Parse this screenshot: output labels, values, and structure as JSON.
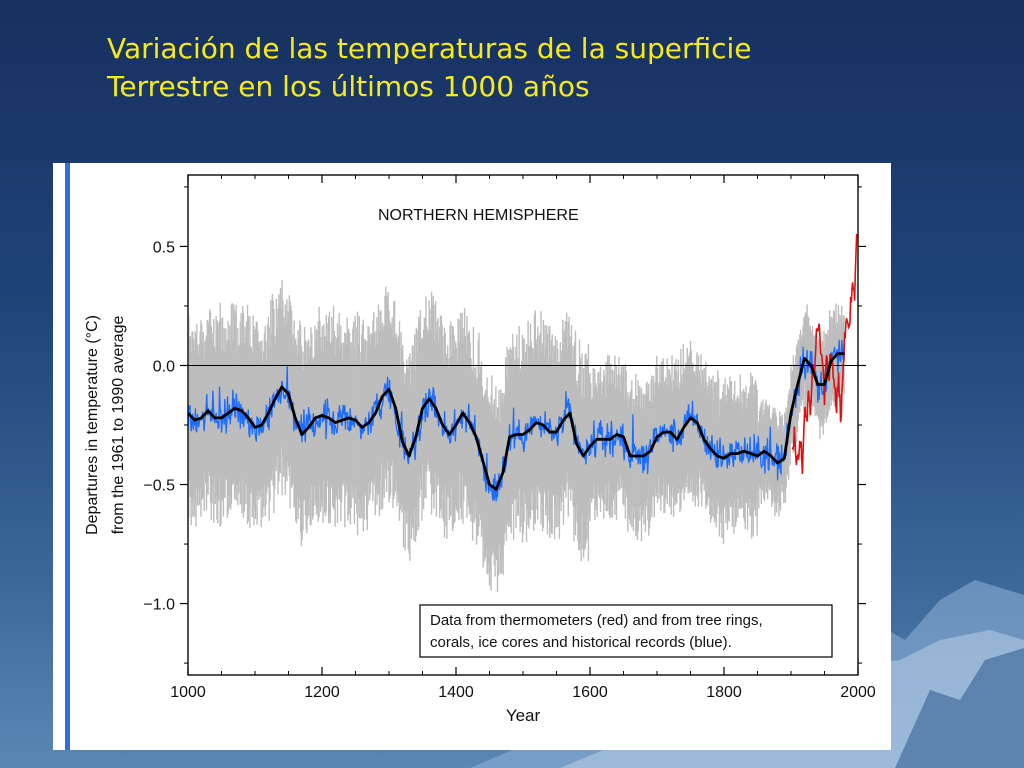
{
  "slide": {
    "title_line1": "Variación de las temperaturas de la superficie",
    "title_line2": "Terrestre en los últimos 1000 años",
    "title_color": "#f5ea1c",
    "background_colors": [
      "#17305f",
      "#5b87b5"
    ]
  },
  "chart_data": {
    "type": "line",
    "title": "NORTHERN HEMISPHERE",
    "xlabel": "Year",
    "ylabel_line1": "Departures in temperature (°C)",
    "ylabel_line2": "from the 1961 to 1990 average",
    "xlim": [
      1000,
      2000
    ],
    "ylim": [
      -1.3,
      0.8
    ],
    "x_ticks": [
      1000,
      1200,
      1400,
      1600,
      1800,
      2000
    ],
    "x_tick_labels": [
      "1000",
      "1200",
      "1400",
      "1600",
      "1800",
      "2000"
    ],
    "y_ticks": [
      0.5,
      0.0,
      -0.5,
      -1.0
    ],
    "y_tick_labels": [
      "0.5",
      "0.0",
      "−0.5",
      "−1.0"
    ],
    "reference_line": 0.0,
    "grid": false,
    "annotation_line1": "Data from thermometers (red) and from tree rings,",
    "annotation_line2": "corals, ice cores and historical records (blue).",
    "colors": {
      "uncertainty": "#bdbdbd",
      "proxy": "#1a6dff",
      "thermometer": "#e01010",
      "smoothed": "#000000"
    },
    "series": [
      {
        "name": "proxy_smoothed",
        "x": [
          1000,
          1010,
          1020,
          1030,
          1040,
          1050,
          1060,
          1070,
          1080,
          1090,
          1100,
          1110,
          1120,
          1130,
          1140,
          1150,
          1160,
          1170,
          1180,
          1190,
          1200,
          1210,
          1220,
          1230,
          1240,
          1250,
          1260,
          1270,
          1280,
          1290,
          1300,
          1310,
          1320,
          1330,
          1340,
          1350,
          1360,
          1370,
          1380,
          1390,
          1400,
          1410,
          1420,
          1430,
          1440,
          1450,
          1460,
          1470,
          1480,
          1490,
          1500,
          1510,
          1520,
          1530,
          1540,
          1550,
          1560,
          1570,
          1580,
          1590,
          1600,
          1610,
          1620,
          1630,
          1640,
          1650,
          1660,
          1670,
          1680,
          1690,
          1700,
          1710,
          1720,
          1730,
          1740,
          1750,
          1760,
          1770,
          1780,
          1790,
          1800,
          1810,
          1820,
          1830,
          1840,
          1850,
          1860,
          1870,
          1880,
          1890,
          1900,
          1910,
          1920,
          1930,
          1940,
          1950,
          1960,
          1970,
          1980
        ],
        "y": [
          -0.2,
          -0.23,
          -0.22,
          -0.19,
          -0.22,
          -0.22,
          -0.2,
          -0.18,
          -0.19,
          -0.22,
          -0.26,
          -0.25,
          -0.2,
          -0.14,
          -0.09,
          -0.12,
          -0.22,
          -0.29,
          -0.26,
          -0.22,
          -0.21,
          -0.22,
          -0.24,
          -0.23,
          -0.22,
          -0.23,
          -0.26,
          -0.24,
          -0.2,
          -0.13,
          -0.1,
          -0.18,
          -0.32,
          -0.38,
          -0.3,
          -0.18,
          -0.14,
          -0.18,
          -0.25,
          -0.29,
          -0.25,
          -0.2,
          -0.24,
          -0.3,
          -0.4,
          -0.5,
          -0.52,
          -0.45,
          -0.3,
          -0.29,
          -0.29,
          -0.27,
          -0.24,
          -0.25,
          -0.28,
          -0.28,
          -0.23,
          -0.2,
          -0.33,
          -0.38,
          -0.34,
          -0.31,
          -0.31,
          -0.31,
          -0.29,
          -0.3,
          -0.38,
          -0.38,
          -0.38,
          -0.36,
          -0.3,
          -0.28,
          -0.28,
          -0.31,
          -0.26,
          -0.22,
          -0.24,
          -0.31,
          -0.35,
          -0.38,
          -0.39,
          -0.37,
          -0.37,
          -0.36,
          -0.37,
          -0.38,
          -0.36,
          -0.38,
          -0.41,
          -0.39,
          -0.2,
          -0.08,
          0.03,
          0.0,
          -0.08,
          -0.08,
          0.02,
          0.05,
          0.05
        ]
      },
      {
        "name": "thermometer_anomaly",
        "x": [
          1902,
          1905,
          1908,
          1911,
          1914,
          1917,
          1920,
          1923,
          1926,
          1929,
          1932,
          1935,
          1938,
          1941,
          1944,
          1947,
          1950,
          1953,
          1956,
          1959,
          1962,
          1965,
          1968,
          1971,
          1974,
          1977,
          1980,
          1983,
          1986,
          1989,
          1992,
          1995,
          1998
        ],
        "y": [
          -0.37,
          -0.3,
          -0.42,
          -0.4,
          -0.3,
          -0.45,
          -0.2,
          -0.25,
          -0.1,
          -0.2,
          0.0,
          -0.05,
          0.15,
          0.2,
          0.1,
          0.0,
          -0.1,
          0.05,
          -0.05,
          0.05,
          0.0,
          -0.1,
          -0.15,
          -0.05,
          -0.2,
          -0.1,
          0.1,
          0.2,
          0.15,
          0.25,
          0.35,
          0.3,
          0.55
        ]
      }
    ]
  }
}
